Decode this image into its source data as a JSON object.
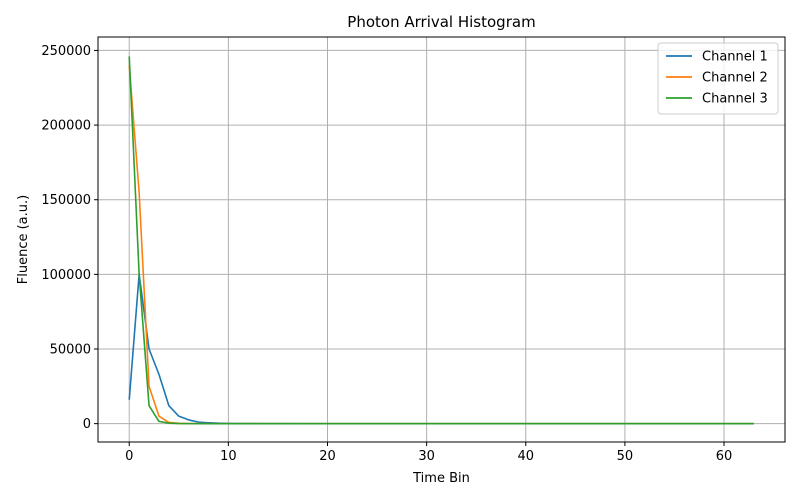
{
  "chart_data": {
    "type": "line",
    "title": "Photon Arrival Histogram",
    "xlabel": "Time Bin",
    "ylabel": "Fluence (a.u.)",
    "xlim": [
      -3.15,
      66.15
    ],
    "ylim": [
      -12300,
      259000
    ],
    "xticks": [
      0,
      10,
      20,
      30,
      40,
      50,
      60
    ],
    "yticks": [
      0,
      50000,
      100000,
      150000,
      200000,
      250000
    ],
    "grid": true,
    "legend_position": "top-right",
    "series": [
      {
        "name": "Channel 1",
        "color": "#1f77b4",
        "x": [
          0,
          1,
          2,
          3,
          4,
          5,
          6,
          7,
          8,
          9,
          10,
          11,
          12,
          20,
          30,
          40,
          50,
          60,
          63
        ],
        "y": [
          16000,
          100000,
          50000,
          33000,
          12000,
          5000,
          2500,
          1000,
          600,
          300,
          150,
          80,
          40,
          0,
          0,
          0,
          0,
          0,
          0
        ]
      },
      {
        "name": "Channel 2",
        "color": "#ff7f0e",
        "x": [
          0,
          1,
          2,
          3,
          4,
          5,
          6,
          8,
          10,
          20,
          30,
          40,
          50,
          60,
          63
        ],
        "y": [
          240000,
          155000,
          25000,
          5000,
          800,
          200,
          50,
          0,
          0,
          0,
          0,
          0,
          0,
          0,
          0
        ]
      },
      {
        "name": "Channel 3",
        "color": "#2ca02c",
        "x": [
          0,
          1,
          2,
          3,
          4,
          5,
          6,
          8,
          10,
          20,
          30,
          40,
          50,
          60,
          63
        ],
        "y": [
          246000,
          100000,
          12000,
          1500,
          300,
          60,
          10,
          0,
          0,
          0,
          0,
          0,
          0,
          0,
          0
        ]
      }
    ]
  }
}
